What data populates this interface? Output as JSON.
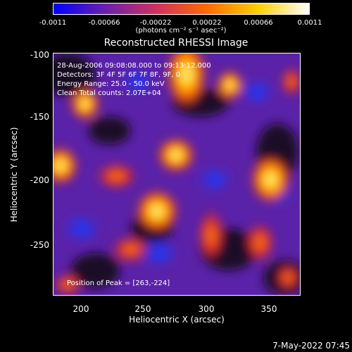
{
  "colorbar": {
    "ticks": [
      "-0.0011",
      "-0.00066",
      "-0.00022",
      "0.00022",
      "0.00066",
      "0.0011"
    ],
    "unit": "(photons cm⁻² s⁻¹ asec⁻²)",
    "colors": [
      "#0000ff",
      "#6a1fb0",
      "#d03060",
      "#ff6a00",
      "#ffd000",
      "#ffffff"
    ]
  },
  "plot": {
    "title": "Reconstructed RHESSI Image",
    "info_lines": [
      "28-Aug-2006 09:08:08.000 to 09:13:12.000",
      "Detectors: 3F 4F 5F 6F 7F 8F, 9F, 0",
      "Energy Range: 25.0 - 50.0 keV",
      "Clean     Total counts: 2.07E+04"
    ],
    "peak": "Position of Peak = [263,-224]",
    "xlabel": "Heliocentric X (arcsec)",
    "ylabel": "Heliocentric Y (arcsec)",
    "xticks": [
      "200",
      "250",
      "300",
      "350"
    ],
    "yticks": [
      "-100",
      "-150",
      "-200",
      "-250"
    ]
  },
  "footer": {
    "timestamp": "7-May-2022 07:45"
  }
}
